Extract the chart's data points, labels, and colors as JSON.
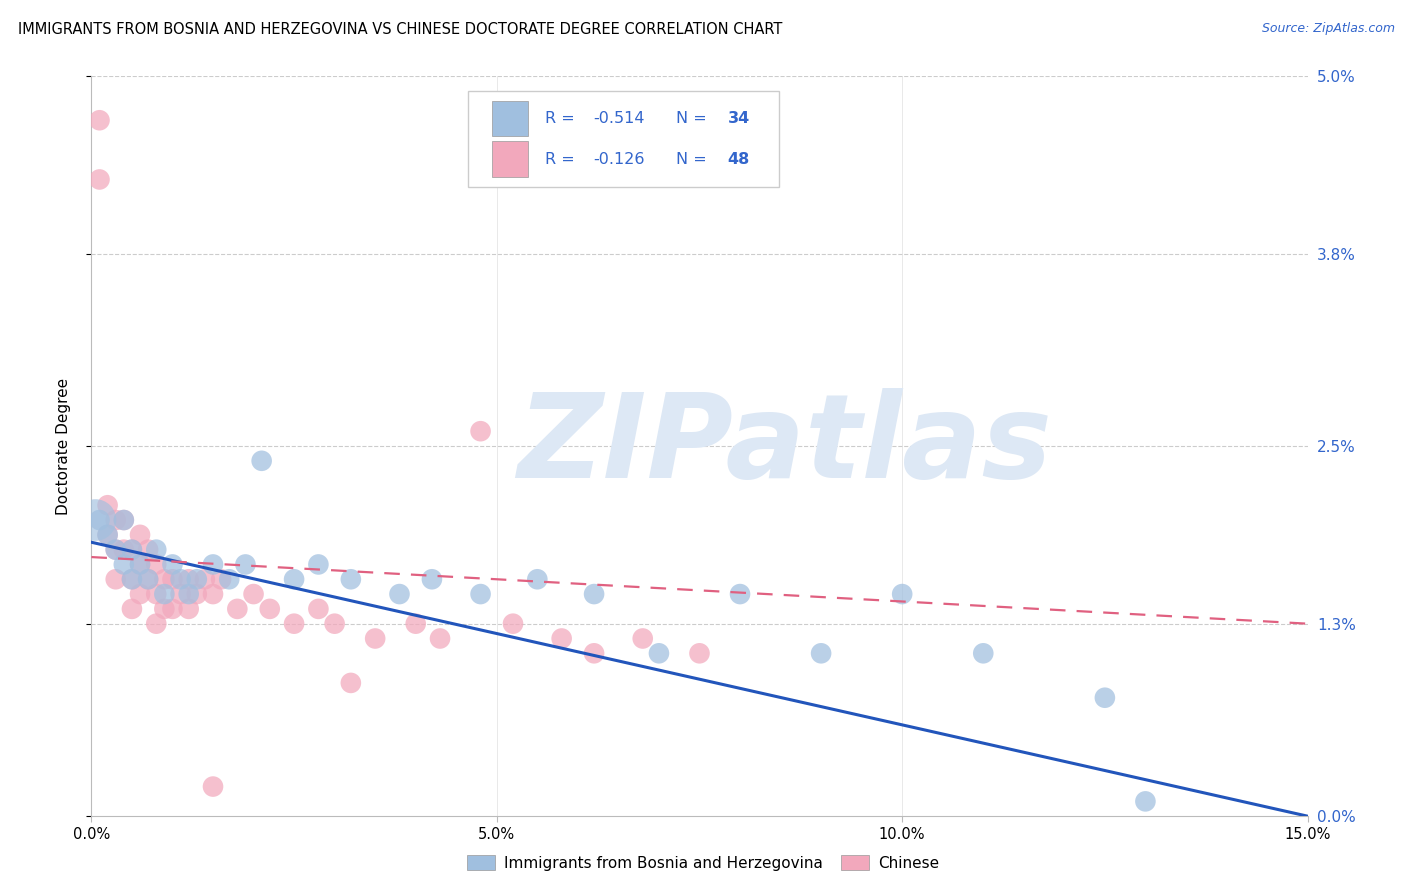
{
  "title": "IMMIGRANTS FROM BOSNIA AND HERZEGOVINA VS CHINESE DOCTORATE DEGREE CORRELATION CHART",
  "source": "Source: ZipAtlas.com",
  "ylabel": "Doctorate Degree",
  "xlabel_blue": "Immigrants from Bosnia and Herzegovina",
  "xlabel_pink": "Chinese",
  "xlim": [
    0.0,
    0.15
  ],
  "ylim": [
    0.0,
    0.05
  ],
  "ytick_vals": [
    0.0,
    0.013,
    0.025,
    0.038,
    0.05
  ],
  "ytick_labels_right": [
    "0.0%",
    "1.3%",
    "2.5%",
    "3.8%",
    "5.0%"
  ],
  "xtick_vals": [
    0.0,
    0.05,
    0.1,
    0.15
  ],
  "xtick_labels": [
    "0.0%",
    "5.0%",
    "10.0%",
    "15.0%"
  ],
  "blue_color": "#a0bfdf",
  "pink_color": "#f2a8bc",
  "trendline_blue_color": "#2255bb",
  "trendline_pink_color": "#e06080",
  "legend_text_color": "#3366cc",
  "watermark_color": "#dde8f5",
  "grid_color": "#cccccc",
  "background": "#ffffff",
  "blue_x": [
    0.001,
    0.002,
    0.003,
    0.004,
    0.004,
    0.005,
    0.005,
    0.006,
    0.007,
    0.008,
    0.009,
    0.01,
    0.011,
    0.012,
    0.013,
    0.015,
    0.017,
    0.019,
    0.021,
    0.025,
    0.028,
    0.032,
    0.038,
    0.042,
    0.048,
    0.055,
    0.062,
    0.07,
    0.08,
    0.09,
    0.1,
    0.11,
    0.125,
    0.13
  ],
  "blue_y": [
    0.02,
    0.019,
    0.018,
    0.02,
    0.017,
    0.018,
    0.016,
    0.017,
    0.016,
    0.018,
    0.015,
    0.017,
    0.016,
    0.015,
    0.016,
    0.017,
    0.016,
    0.017,
    0.024,
    0.016,
    0.017,
    0.016,
    0.015,
    0.016,
    0.015,
    0.016,
    0.015,
    0.011,
    0.015,
    0.011,
    0.015,
    0.011,
    0.008,
    0.001
  ],
  "pink_x": [
    0.001,
    0.001,
    0.002,
    0.002,
    0.003,
    0.003,
    0.003,
    0.004,
    0.004,
    0.005,
    0.005,
    0.005,
    0.006,
    0.006,
    0.006,
    0.007,
    0.007,
    0.008,
    0.008,
    0.008,
    0.009,
    0.009,
    0.01,
    0.01,
    0.011,
    0.012,
    0.012,
    0.013,
    0.014,
    0.015,
    0.016,
    0.018,
    0.02,
    0.022,
    0.025,
    0.028,
    0.03,
    0.035,
    0.04,
    0.043,
    0.048,
    0.052,
    0.058,
    0.062,
    0.068,
    0.075,
    0.015,
    0.032
  ],
  "pink_y": [
    0.047,
    0.043,
    0.021,
    0.019,
    0.02,
    0.018,
    0.016,
    0.02,
    0.018,
    0.018,
    0.016,
    0.014,
    0.019,
    0.017,
    0.015,
    0.018,
    0.016,
    0.017,
    0.015,
    0.013,
    0.016,
    0.014,
    0.016,
    0.014,
    0.015,
    0.016,
    0.014,
    0.015,
    0.016,
    0.015,
    0.016,
    0.014,
    0.015,
    0.014,
    0.013,
    0.014,
    0.013,
    0.012,
    0.013,
    0.012,
    0.026,
    0.013,
    0.012,
    0.011,
    0.012,
    0.011,
    0.002,
    0.009
  ],
  "blue_trend_start": 0.0185,
  "blue_trend_end": 0.0,
  "pink_trend_start": 0.0175,
  "pink_trend_end": 0.013
}
